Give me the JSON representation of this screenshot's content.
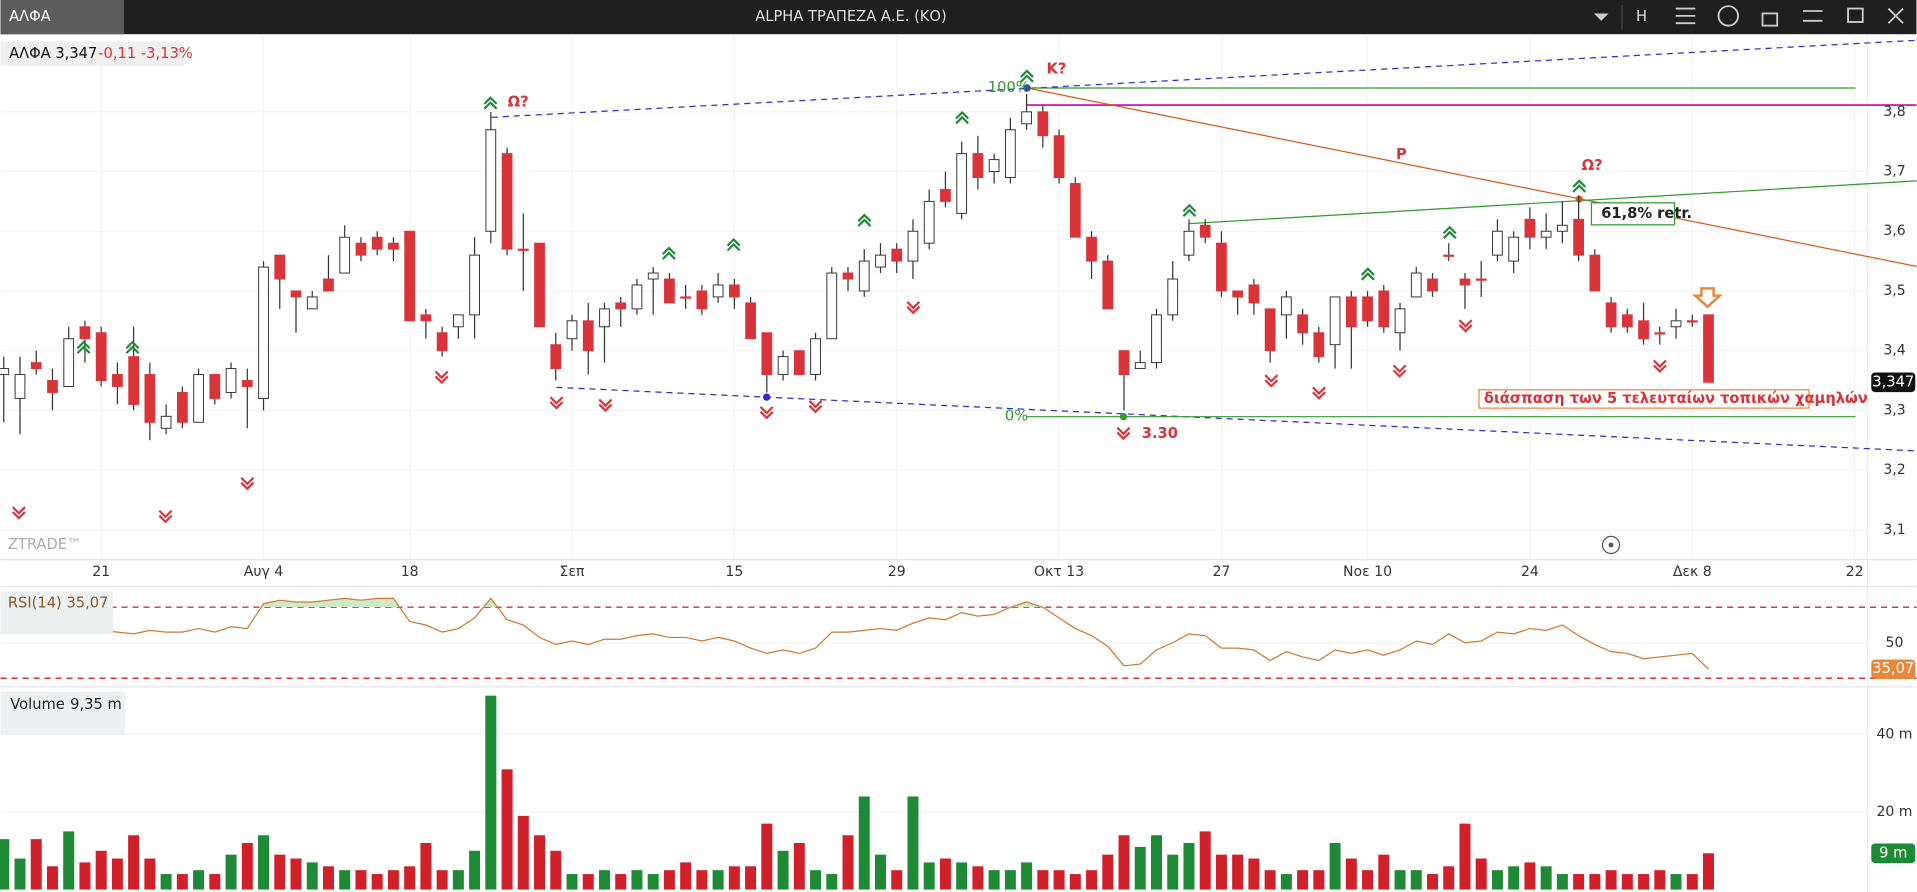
{
  "window": {
    "tab": "ΑΛΦΑ",
    "title": "ALPHA ΤΡΑΠΕΖΑ Α.Ε. (ΚΟ)",
    "menu": "H"
  },
  "chart_data": [
    {
      "type": "candlestick",
      "legend_name": "ΑΛΦΑ 3,347",
      "legend_change": "-0,11 -3,13%",
      "watermark": "ZTRADE™",
      "up_color": "#ffffff",
      "down_color": "#d9343a",
      "edge_color": "#333333",
      "xlim": [
        -0.2,
        114.8
      ],
      "ylim": [
        3.05,
        3.93
      ],
      "xticks": [
        {
          "value": 6,
          "label": "21"
        },
        {
          "value": 16,
          "label": "Αυγ 4"
        },
        {
          "value": 25,
          "label": "18"
        },
        {
          "value": 35,
          "label": "Σεπ"
        },
        {
          "value": 45,
          "label": "15"
        },
        {
          "value": 55,
          "label": "29"
        },
        {
          "value": 65,
          "label": "Οκτ 13"
        },
        {
          "value": 75,
          "label": "27"
        },
        {
          "value": 84,
          "label": "Νοε 10"
        },
        {
          "value": 94,
          "label": "24"
        },
        {
          "value": 104,
          "label": "Δεκ 8"
        },
        {
          "value": 114,
          "label": "22"
        }
      ],
      "yticks": [
        {
          "value": 3.1,
          "label": "3,1"
        },
        {
          "value": 3.2,
          "label": "3,2"
        },
        {
          "value": 3.3,
          "label": "3,3"
        },
        {
          "value": 3.4,
          "label": "3,4"
        },
        {
          "value": 3.5,
          "label": "3,5"
        },
        {
          "value": 3.6,
          "label": "3,6"
        },
        {
          "value": 3.7,
          "label": "3,7"
        },
        {
          "value": 3.8,
          "label": "3,8"
        }
      ],
      "last": {
        "value": 3.347,
        "label": "3,347"
      },
      "annotations": {
        "omega1": "Ω?",
        "kappa": "Κ?",
        "omega2": "Ω?",
        "p": "P",
        "retr": "61,8% retr.",
        "pct100": "100%",
        "pct0": "0%",
        "low": "3.30",
        "note": "διάσπαση των 5 τελευταίων τοπικών χαμηλών"
      },
      "ohlc": [
        [
          3.36,
          3.39,
          3.28,
          3.37
        ],
        [
          3.32,
          3.39,
          3.26,
          3.36
        ],
        [
          3.38,
          3.4,
          3.36,
          3.37
        ],
        [
          3.35,
          3.37,
          3.3,
          3.33
        ],
        [
          3.34,
          3.44,
          3.34,
          3.42
        ],
        [
          3.44,
          3.45,
          3.38,
          3.42
        ],
        [
          3.43,
          3.44,
          3.34,
          3.35
        ],
        [
          3.36,
          3.38,
          3.31,
          3.34
        ],
        [
          3.39,
          3.44,
          3.3,
          3.31
        ],
        [
          3.36,
          3.38,
          3.25,
          3.28
        ],
        [
          3.27,
          3.31,
          3.26,
          3.29
        ],
        [
          3.33,
          3.34,
          3.27,
          3.28
        ],
        [
          3.28,
          3.37,
          3.28,
          3.36
        ],
        [
          3.36,
          3.36,
          3.31,
          3.32
        ],
        [
          3.33,
          3.38,
          3.32,
          3.37
        ],
        [
          3.35,
          3.37,
          3.27,
          3.34
        ],
        [
          3.32,
          3.55,
          3.3,
          3.54
        ],
        [
          3.56,
          3.56,
          3.47,
          3.52
        ],
        [
          3.5,
          3.5,
          3.43,
          3.49
        ],
        [
          3.47,
          3.5,
          3.47,
          3.49
        ],
        [
          3.52,
          3.56,
          3.5,
          3.5
        ],
        [
          3.53,
          3.61,
          3.53,
          3.59
        ],
        [
          3.58,
          3.59,
          3.55,
          3.56
        ],
        [
          3.59,
          3.6,
          3.56,
          3.57
        ],
        [
          3.58,
          3.59,
          3.55,
          3.57
        ],
        [
          3.6,
          3.6,
          3.45,
          3.45
        ],
        [
          3.46,
          3.47,
          3.42,
          3.45
        ],
        [
          3.43,
          3.44,
          3.39,
          3.4
        ],
        [
          3.44,
          3.46,
          3.42,
          3.46
        ],
        [
          3.46,
          3.59,
          3.42,
          3.56
        ],
        [
          3.6,
          3.8,
          3.58,
          3.77
        ],
        [
          3.73,
          3.74,
          3.56,
          3.57
        ],
        [
          3.57,
          3.63,
          3.5,
          3.57
        ],
        [
          3.58,
          3.58,
          3.44,
          3.44
        ],
        [
          3.41,
          3.43,
          3.35,
          3.37
        ],
        [
          3.42,
          3.46,
          3.4,
          3.45
        ],
        [
          3.45,
          3.48,
          3.36,
          3.4
        ],
        [
          3.44,
          3.48,
          3.38,
          3.47
        ],
        [
          3.48,
          3.49,
          3.44,
          3.47
        ],
        [
          3.47,
          3.52,
          3.46,
          3.51
        ],
        [
          3.52,
          3.54,
          3.46,
          3.53
        ],
        [
          3.52,
          3.53,
          3.48,
          3.48
        ],
        [
          3.49,
          3.51,
          3.47,
          3.49
        ],
        [
          3.5,
          3.51,
          3.46,
          3.47
        ],
        [
          3.49,
          3.53,
          3.48,
          3.51
        ],
        [
          3.51,
          3.52,
          3.47,
          3.49
        ],
        [
          3.48,
          3.49,
          3.42,
          3.42
        ],
        [
          3.43,
          3.43,
          3.33,
          3.36
        ],
        [
          3.36,
          3.4,
          3.35,
          3.39
        ],
        [
          3.4,
          3.4,
          3.36,
          3.36
        ],
        [
          3.36,
          3.43,
          3.35,
          3.42
        ],
        [
          3.42,
          3.54,
          3.42,
          3.53
        ],
        [
          3.53,
          3.54,
          3.5,
          3.52
        ],
        [
          3.5,
          3.57,
          3.49,
          3.55
        ],
        [
          3.54,
          3.58,
          3.53,
          3.56
        ],
        [
          3.57,
          3.58,
          3.53,
          3.55
        ],
        [
          3.55,
          3.62,
          3.52,
          3.6
        ],
        [
          3.58,
          3.67,
          3.57,
          3.65
        ],
        [
          3.67,
          3.7,
          3.64,
          3.65
        ],
        [
          3.63,
          3.75,
          3.62,
          3.73
        ],
        [
          3.73,
          3.76,
          3.67,
          3.69
        ],
        [
          3.7,
          3.73,
          3.68,
          3.72
        ],
        [
          3.69,
          3.79,
          3.68,
          3.77
        ],
        [
          3.78,
          3.83,
          3.77,
          3.8
        ],
        [
          3.8,
          3.81,
          3.74,
          3.76
        ],
        [
          3.76,
          3.77,
          3.68,
          3.69
        ],
        [
          3.68,
          3.69,
          3.59,
          3.59
        ],
        [
          3.59,
          3.6,
          3.52,
          3.55
        ],
        [
          3.55,
          3.56,
          3.47,
          3.47
        ],
        [
          3.4,
          3.4,
          3.3,
          3.36
        ],
        [
          3.37,
          3.4,
          3.37,
          3.38
        ],
        [
          3.38,
          3.47,
          3.37,
          3.46
        ],
        [
          3.46,
          3.55,
          3.45,
          3.52
        ],
        [
          3.56,
          3.62,
          3.55,
          3.6
        ],
        [
          3.61,
          3.62,
          3.58,
          3.59
        ],
        [
          3.58,
          3.6,
          3.49,
          3.5
        ],
        [
          3.5,
          3.5,
          3.46,
          3.49
        ],
        [
          3.51,
          3.52,
          3.46,
          3.48
        ],
        [
          3.47,
          3.47,
          3.38,
          3.4
        ],
        [
          3.46,
          3.5,
          3.42,
          3.49
        ],
        [
          3.46,
          3.47,
          3.41,
          3.43
        ],
        [
          3.43,
          3.44,
          3.38,
          3.39
        ],
        [
          3.41,
          3.49,
          3.37,
          3.49
        ],
        [
          3.49,
          3.5,
          3.37,
          3.44
        ],
        [
          3.49,
          3.5,
          3.44,
          3.45
        ],
        [
          3.5,
          3.51,
          3.43,
          3.44
        ],
        [
          3.43,
          3.48,
          3.4,
          3.47
        ],
        [
          3.49,
          3.54,
          3.49,
          3.53
        ],
        [
          3.52,
          3.53,
          3.49,
          3.5
        ],
        [
          3.56,
          3.58,
          3.55,
          3.56
        ],
        [
          3.52,
          3.53,
          3.47,
          3.51
        ],
        [
          3.52,
          3.55,
          3.49,
          3.52
        ],
        [
          3.56,
          3.62,
          3.55,
          3.6
        ],
        [
          3.55,
          3.6,
          3.53,
          3.59
        ],
        [
          3.62,
          3.64,
          3.57,
          3.59
        ],
        [
          3.59,
          3.63,
          3.57,
          3.6
        ],
        [
          3.6,
          3.65,
          3.58,
          3.61
        ],
        [
          3.62,
          3.66,
          3.55,
          3.56
        ],
        [
          3.56,
          3.57,
          3.5,
          3.5
        ],
        [
          3.48,
          3.49,
          3.43,
          3.44
        ],
        [
          3.46,
          3.47,
          3.43,
          3.44
        ],
        [
          3.45,
          3.48,
          3.41,
          3.42
        ],
        [
          3.43,
          3.44,
          3.41,
          3.43
        ],
        [
          3.44,
          3.47,
          3.42,
          3.45
        ],
        [
          3.45,
          3.46,
          3.44,
          3.45
        ],
        [
          3.46,
          3.46,
          3.347,
          3.347
        ]
      ]
    },
    {
      "type": "line",
      "legend_name": "RSI(14)",
      "legend_value": "35,07",
      "color": "#d0782e",
      "level_color": "#d9343a",
      "zone_color": "#cfe8c8",
      "ylim": [
        26.6,
        81.7
      ],
      "yticks": [
        50
      ],
      "levels": [
        70,
        30
      ],
      "last": {
        "value": 35.07,
        "label": "35,07"
      },
      "values": [
        60,
        61,
        62,
        63,
        62,
        61,
        57,
        56,
        55,
        57,
        56,
        56,
        58,
        56,
        59,
        58,
        72,
        74,
        73,
        73,
        74,
        75,
        74,
        75,
        75,
        62,
        60,
        56,
        58,
        64,
        75,
        63,
        60,
        53,
        49,
        51,
        49,
        52,
        52,
        54,
        55,
        53,
        53,
        51,
        53,
        51,
        47,
        44,
        46,
        44,
        47,
        56,
        56,
        57,
        58,
        57,
        61,
        64,
        63,
        67,
        65,
        66,
        70,
        73,
        70,
        64,
        58,
        54,
        48,
        37,
        38,
        46,
        50,
        55,
        54,
        47,
        47,
        46,
        40,
        45,
        42,
        40,
        46,
        44,
        46,
        43,
        46,
        51,
        49,
        55,
        50,
        51,
        56,
        55,
        58,
        57,
        60,
        54,
        49,
        45,
        44,
        41,
        42,
        43,
        44,
        35.07
      ]
    },
    {
      "type": "bar",
      "legend_name": "Volume",
      "legend_value": "9,35 m",
      "up_color": "#1f8a35",
      "down_color": "#d0202a",
      "ylim": [
        0,
        52.3
      ],
      "yticks": [
        {
          "value": 20,
          "label": "20 m"
        },
        {
          "value": 40,
          "label": "40 m"
        }
      ],
      "last": {
        "value": 9.35,
        "label": "9 m"
      },
      "values": [
        13,
        8,
        13,
        6,
        15,
        7,
        10,
        8,
        14,
        8,
        4,
        4,
        5,
        4,
        9,
        12,
        14,
        9,
        8,
        7,
        6,
        5,
        5,
        4,
        5,
        6,
        12,
        5,
        5,
        10,
        50,
        31,
        19,
        14,
        10,
        4,
        4,
        5,
        4,
        5,
        4,
        5,
        7,
        5,
        5,
        6,
        6,
        17,
        10,
        12,
        5,
        4,
        14,
        24,
        9,
        5,
        24,
        7,
        8,
        7,
        6,
        5,
        5,
        7,
        5,
        5,
        4,
        5,
        9,
        14,
        11,
        14,
        9,
        12,
        15,
        9,
        9,
        8,
        5,
        4,
        5,
        5,
        12,
        8,
        5,
        9,
        5,
        5,
        4,
        6,
        17,
        8,
        5,
        6,
        7,
        6,
        4,
        4,
        4,
        5,
        4,
        4,
        5,
        4,
        4,
        9.35
      ]
    }
  ]
}
